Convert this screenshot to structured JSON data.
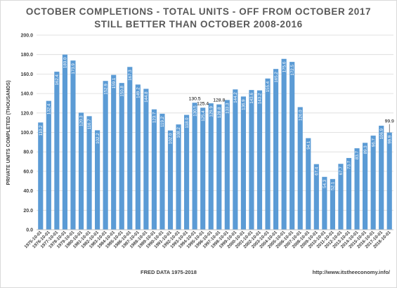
{
  "chart_data": {
    "type": "bar",
    "title": "OCTOBER COMPLETIONS - TOTAL UNITS - OFF FROM OCTOBER 2017",
    "subtitle": "STILL BETTER THAN OCTOBER 2008-2016",
    "ylabel": "PRIVATE UNITS COMPLETED (THOUSANDS)",
    "xlabel": "FRED DATA 1975-2018",
    "source_url": "http://www.itstheeconomy.info/",
    "ylim": [
      0,
      200
    ],
    "yticks": [
      "0.0",
      "20.0",
      "40.0",
      "60.0",
      "80.0",
      "100.0",
      "120.0",
      "140.0",
      "160.0",
      "180.0",
      "200.0"
    ],
    "grid": true,
    "bar_color": "#5b9bd5",
    "categories": [
      "1975-10-01",
      "1976-10-01",
      "1977-10-01",
      "1978-10-01",
      "1979-10-01",
      "1980-10-01",
      "1981-10-01",
      "1982-10-01",
      "1983-10-01",
      "1984-10-01",
      "1985-10-01",
      "1986-10-01",
      "1987-10-01",
      "1988-10-01",
      "1989-10-01",
      "1990-10-01",
      "1991-10-01",
      "1992-10-01",
      "1993-10-01",
      "1994-10-01",
      "1995-10-01",
      "1996-10-01",
      "1997-10-01",
      "1998-10-01",
      "1999-10-01",
      "2000-10-01",
      "2001-10-01",
      "2002-10-01",
      "2003-10-01",
      "2004-10-01",
      "2005-10-01",
      "2006-10-01",
      "2007-10-01",
      "2008-10-01",
      "2009-10-01",
      "2010-10-01",
      "2011-10-01",
      "2012-10-01",
      "2013-10-01",
      "2014-10-01",
      "2015-10-01",
      "2016-10-01",
      "2017-10-01",
      "2018-10-01"
    ],
    "values": [
      110.2,
      132.4,
      162.4,
      180.0,
      173.9,
      120.3,
      116.7,
      102.2,
      152.9,
      159.1,
      150.8,
      167.3,
      149.2,
      144.8,
      123.7,
      119.2,
      102.0,
      108.2,
      118.0,
      130.5,
      125.4,
      129.9,
      128.8,
      133.3,
      144.2,
      136.9,
      143.6,
      143.2,
      155.4,
      165.2,
      175.6,
      172.5,
      126.0,
      94.1,
      67.4,
      54.3,
      52.1,
      67.7,
      73.7,
      83.7,
      89.3,
      96.7,
      106.9,
      99.9
    ],
    "value_labels": [
      "110.2",
      "132.4",
      "162.4",
      "180.0",
      "173.9",
      "120.3",
      "116.7",
      "102.2",
      "152.9",
      "159.1",
      "150.8",
      "167.3",
      "149.2",
      "144.8",
      "123.7",
      "119.2",
      "102.0",
      "108.2",
      "118.0",
      "130.5",
      "125.4",
      "129.9",
      "128.8",
      "133.3",
      "144.2",
      "136.9",
      "143.6",
      "143.2",
      "155.4",
      "165.2",
      "175.6",
      "172.5",
      "126.0",
      "94.1",
      "67.4",
      "54.3",
      "52.1",
      "67.7",
      "73.7",
      "83.7",
      "89.3",
      "96.7",
      "106.9",
      "99.9"
    ],
    "callouts": [
      {
        "index": 19,
        "label": "130.5"
      },
      {
        "index": 20,
        "label": "125.4"
      },
      {
        "index": 22,
        "label": "128.8"
      },
      {
        "index": 43,
        "label": "99.9"
      }
    ]
  }
}
